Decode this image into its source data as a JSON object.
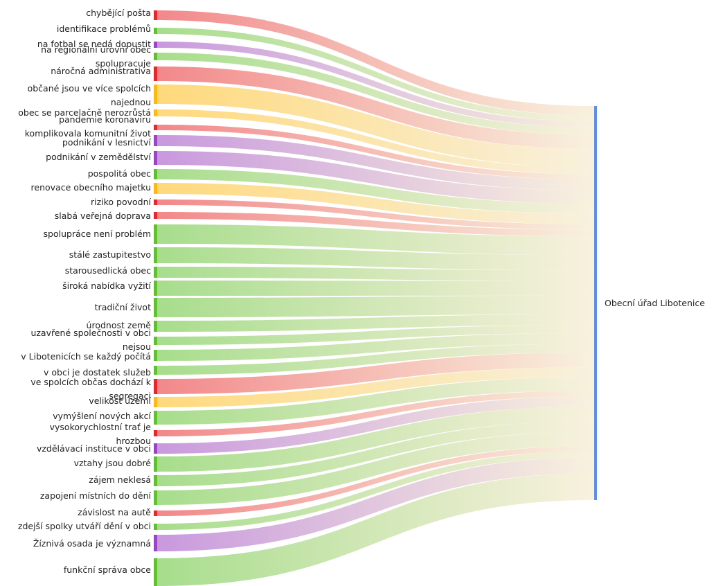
{
  "target": {
    "label": "Obecní úřad Libotenice",
    "color": "#5b8ee6"
  },
  "colors": {
    "red": "#e8262b",
    "green": "#5fc12e",
    "purple": "#9b45c4",
    "yellow": "#ffb90f"
  },
  "sources": [
    {
      "lines": [
        "chybějící pošta"
      ],
      "color": "red"
    },
    {
      "lines": [
        "identifikace problémů"
      ],
      "color": "green"
    },
    {
      "lines": [
        "na fotbal se nedá dopustit"
      ],
      "color": "purple"
    },
    {
      "lines": [
        "na regionální úrovni obec",
        "spolupracuje"
      ],
      "color": "green"
    },
    {
      "lines": [
        "náročná administrativa"
      ],
      "color": "red"
    },
    {
      "lines": [
        "občané jsou ve více spolcích",
        "najednou"
      ],
      "color": "yellow"
    },
    {
      "lines": [
        "obec se parcelačně nerozrůstá"
      ],
      "color": "yellow"
    },
    {
      "lines": [
        "pandemie koronaviru",
        "komplikovala komunitní život"
      ],
      "color": "red"
    },
    {
      "lines": [
        "podnikání v lesnictví"
      ],
      "color": "purple"
    },
    {
      "lines": [
        "podnikání v zemědělství"
      ],
      "color": "purple"
    },
    {
      "lines": [
        "pospolitá obec"
      ],
      "color": "green"
    },
    {
      "lines": [
        "renovace obecního majetku"
      ],
      "color": "yellow"
    },
    {
      "lines": [
        "riziko povodní"
      ],
      "color": "red"
    },
    {
      "lines": [
        "slabá veřejná doprava"
      ],
      "color": "red"
    },
    {
      "lines": [
        "spolupráce není problém"
      ],
      "color": "green"
    },
    {
      "lines": [
        "stálé zastupitestvo"
      ],
      "color": "green"
    },
    {
      "lines": [
        "starousedlická obec"
      ],
      "color": "green"
    },
    {
      "lines": [
        "široká nabídka vyžití"
      ],
      "color": "green"
    },
    {
      "lines": [
        "tradiční život"
      ],
      "color": "green"
    },
    {
      "lines": [
        "úrodnost země"
      ],
      "color": "green"
    },
    {
      "lines": [
        "uzavřené společnosti v obci",
        "nejsou"
      ],
      "color": "green"
    },
    {
      "lines": [
        "v Libotenicích se každý počítá"
      ],
      "color": "green"
    },
    {
      "lines": [
        "v obci je dostatek služeb"
      ],
      "color": "green"
    },
    {
      "lines": [
        "ve spolcích občas dochází k",
        "segregaci"
      ],
      "color": "red"
    },
    {
      "lines": [
        "velikost území"
      ],
      "color": "yellow"
    },
    {
      "lines": [
        "vymýšlení nových akcí"
      ],
      "color": "green"
    },
    {
      "lines": [
        "vysokorychlostní trať je",
        "hrozbou"
      ],
      "color": "red"
    },
    {
      "lines": [
        "vzdělávací instituce v obci"
      ],
      "color": "purple"
    },
    {
      "lines": [
        "vztahy jsou dobré"
      ],
      "color": "green"
    },
    {
      "lines": [
        "zájem neklesá"
      ],
      "color": "green"
    },
    {
      "lines": [
        "zapojení místních do dění"
      ],
      "color": "green"
    },
    {
      "lines": [
        "závislost na autě"
      ],
      "color": "red"
    },
    {
      "lines": [
        "zdejší spolky utváří dění v obci"
      ],
      "color": "green"
    },
    {
      "lines": [
        "Žíznivá osada je významná"
      ],
      "color": "purple"
    },
    {
      "lines": [
        "funkční správa obce"
      ],
      "color": "green"
    }
  ]
}
